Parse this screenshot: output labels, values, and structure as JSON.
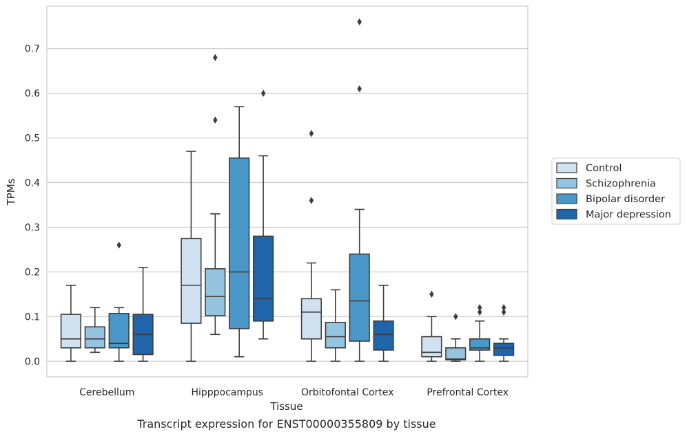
{
  "caption": "Transcript expression for ENST00000355809 by tissue",
  "chart_data": {
    "type": "box",
    "title": "",
    "xlabel": "Tissue",
    "ylabel": "TPMs",
    "ylim": [
      -0.035,
      0.795
    ],
    "yticks": [
      0.0,
      0.1,
      0.2,
      0.3,
      0.4,
      0.5,
      0.6,
      0.7
    ],
    "ytick_labels": [
      "0.0",
      "0.1",
      "0.2",
      "0.3",
      "0.4",
      "0.5",
      "0.6",
      "0.7"
    ],
    "grid": true,
    "legend_position": "right-outside",
    "categories": [
      "Cerebellum",
      "Hipppocampus",
      "Orbitofontal Cortex",
      "Prefrontal Cortex"
    ],
    "series": [
      {
        "name": "Control",
        "color": "#d0e1f2",
        "boxes": [
          {
            "whisker_low": 0.0,
            "q1": 0.03,
            "median": 0.05,
            "q3": 0.105,
            "whisker_high": 0.17,
            "outliers": []
          },
          {
            "whisker_low": 0.0,
            "q1": 0.085,
            "median": 0.17,
            "q3": 0.275,
            "whisker_high": 0.47,
            "outliers": []
          },
          {
            "whisker_low": 0.0,
            "q1": 0.05,
            "median": 0.11,
            "q3": 0.14,
            "whisker_high": 0.22,
            "outliers": [
              0.36,
              0.51
            ]
          },
          {
            "whisker_low": 0.0,
            "q1": 0.01,
            "median": 0.02,
            "q3": 0.055,
            "whisker_high": 0.1,
            "outliers": [
              0.15
            ]
          }
        ]
      },
      {
        "name": "Schizophrenia",
        "color": "#94c4df",
        "boxes": [
          {
            "whisker_low": 0.02,
            "q1": 0.03,
            "median": 0.05,
            "q3": 0.077,
            "whisker_high": 0.12,
            "outliers": []
          },
          {
            "whisker_low": 0.06,
            "q1": 0.102,
            "median": 0.145,
            "q3": 0.207,
            "whisker_high": 0.33,
            "outliers": [
              0.54,
              0.68
            ]
          },
          {
            "whisker_low": 0.0,
            "q1": 0.03,
            "median": 0.055,
            "q3": 0.087,
            "whisker_high": 0.16,
            "outliers": []
          },
          {
            "whisker_low": 0.0,
            "q1": 0.003,
            "median": 0.005,
            "q3": 0.03,
            "whisker_high": 0.05,
            "outliers": [
              0.1
            ]
          }
        ]
      },
      {
        "name": "Bipolar disorder",
        "color": "#4a98c9",
        "boxes": [
          {
            "whisker_low": 0.0,
            "q1": 0.03,
            "median": 0.04,
            "q3": 0.107,
            "whisker_high": 0.12,
            "outliers": [
              0.26
            ]
          },
          {
            "whisker_low": 0.01,
            "q1": 0.073,
            "median": 0.2,
            "q3": 0.455,
            "whisker_high": 0.57,
            "outliers": []
          },
          {
            "whisker_low": 0.0,
            "q1": 0.045,
            "median": 0.135,
            "q3": 0.24,
            "whisker_high": 0.34,
            "outliers": [
              0.61,
              0.76
            ]
          },
          {
            "whisker_low": 0.0,
            "q1": 0.025,
            "median": 0.03,
            "q3": 0.05,
            "whisker_high": 0.09,
            "outliers": [
              0.11,
              0.12
            ]
          }
        ]
      },
      {
        "name": "Major depression",
        "color": "#2064aa",
        "boxes": [
          {
            "whisker_low": 0.0,
            "q1": 0.015,
            "median": 0.06,
            "q3": 0.105,
            "whisker_high": 0.21,
            "outliers": []
          },
          {
            "whisker_low": 0.05,
            "q1": 0.09,
            "median": 0.14,
            "q3": 0.28,
            "whisker_high": 0.46,
            "outliers": [
              0.6
            ]
          },
          {
            "whisker_low": 0.0,
            "q1": 0.025,
            "median": 0.06,
            "q3": 0.09,
            "whisker_high": 0.17,
            "outliers": []
          },
          {
            "whisker_low": 0.0,
            "q1": 0.013,
            "median": 0.03,
            "q3": 0.04,
            "whisker_high": 0.05,
            "outliers": [
              0.11,
              0.12
            ]
          }
        ]
      }
    ]
  }
}
